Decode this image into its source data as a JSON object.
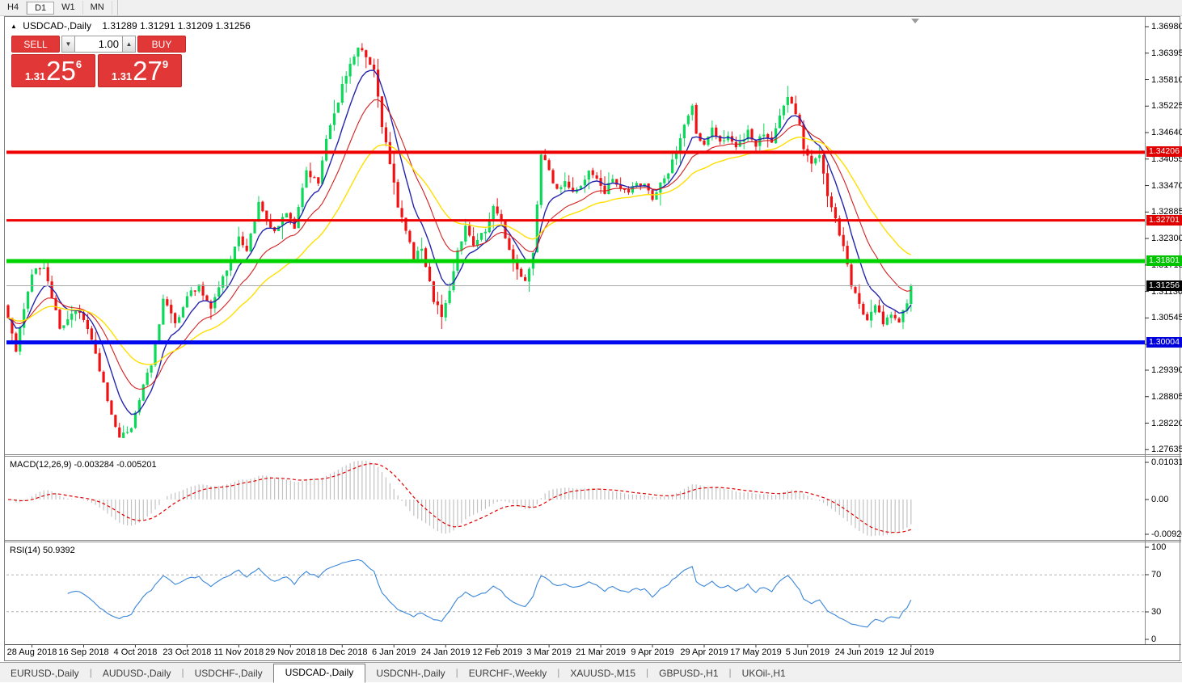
{
  "toolbar": {
    "timeframes": [
      "H4",
      "D1",
      "W1",
      "MN"
    ],
    "active": "D1"
  },
  "title": {
    "symbol_label": "USDCAD-,Daily",
    "ohlc": "1.31289 1.31291 1.31209 1.31256"
  },
  "trade_panel": {
    "sell_label": "SELL",
    "buy_label": "BUY",
    "volume": "1.00",
    "sell_price": {
      "prefix": "1.31",
      "big": "25",
      "sup": "6"
    },
    "buy_price": {
      "prefix": "1.31",
      "big": "27",
      "sup": "9"
    },
    "button_color": "#e23737"
  },
  "chart_data": {
    "type": "candlestick",
    "symbol": "USDCAD-",
    "timeframe": "Daily",
    "ohlc": {
      "open": "1.31289",
      "high": "1.31291",
      "low": "1.31209",
      "close": "1.31256"
    },
    "y_axis": {
      "ticks": [
        "1.36980",
        "1.36395",
        "1.35810",
        "1.35225",
        "1.34640",
        "1.34055",
        "1.33470",
        "1.32885",
        "1.32300",
        "1.31715",
        "1.31130",
        "1.30545",
        "1.29960",
        "1.29390",
        "1.28805",
        "1.28220",
        "1.27635"
      ]
    },
    "x_axis_dates": [
      "28 Aug 2018",
      "16 Sep 2018",
      "4 Oct 2018",
      "23 Oct 2018",
      "11 Nov 2018",
      "29 Nov 2018",
      "18 Dec 2018",
      "6 Jan 2019",
      "24 Jan 2019",
      "12 Feb 2019",
      "3 Mar 2019",
      "21 Mar 2019",
      "9 Apr 2019",
      "29 Apr 2019",
      "17 May 2019",
      "5 Jun 2019",
      "24 Jun 2019",
      "12 Jul 2019"
    ],
    "horizontal_lines": [
      {
        "price": 1.34206,
        "label": "1.34206",
        "color": "#ee0000",
        "width": 4,
        "tag": "#e00000"
      },
      {
        "price": 1.32701,
        "label": "1.32701",
        "color": "#ee0000",
        "width": 3,
        "tag": "#e00000"
      },
      {
        "price": 1.31801,
        "label": "1.31801",
        "color": "#00d400",
        "width": 5,
        "tag": "#00c400"
      },
      {
        "price": 1.31256,
        "label": "1.31256",
        "color": "#a8a8a8",
        "width": 1,
        "tag": "#000000"
      },
      {
        "price": 1.30004,
        "label": "1.30004",
        "color": "#0008ee",
        "width": 5,
        "tag": "#0000dd"
      }
    ],
    "bars_total": 228,
    "candle_up_color": "#0cd95a",
    "candle_down_color": "#f01212",
    "moving_averages": [
      {
        "period": 8,
        "color": "#2424ae"
      },
      {
        "period": 17,
        "color": "#d42020"
      },
      {
        "period": 34,
        "color": "#ffdf00"
      }
    ],
    "price_path_anchors": [
      [
        0,
        1.306
      ],
      [
        2,
        1.2975
      ],
      [
        4,
        1.308
      ],
      [
        6,
        1.3155
      ],
      [
        9,
        1.317
      ],
      [
        13,
        1.303
      ],
      [
        17,
        1.3075
      ],
      [
        20,
        1.303
      ],
      [
        24,
        1.291
      ],
      [
        26,
        1.284
      ],
      [
        28,
        1.2785
      ],
      [
        31,
        1.2815
      ],
      [
        34,
        1.2905
      ],
      [
        36,
        1.295
      ],
      [
        39,
        1.3095
      ],
      [
        42,
        1.304
      ],
      [
        45,
        1.3105
      ],
      [
        48,
        1.3125
      ],
      [
        51,
        1.3075
      ],
      [
        53,
        1.3125
      ],
      [
        56,
        1.318
      ],
      [
        58,
        1.3235
      ],
      [
        60,
        1.3205
      ],
      [
        63,
        1.3305
      ],
      [
        65,
        1.327
      ],
      [
        67,
        1.324
      ],
      [
        70,
        1.329
      ],
      [
        72,
        1.325
      ],
      [
        75,
        1.338
      ],
      [
        78,
        1.3355
      ],
      [
        80,
        1.3455
      ],
      [
        82,
        1.35
      ],
      [
        84,
        1.3565
      ],
      [
        86,
        1.362
      ],
      [
        88,
        1.365
      ],
      [
        90,
        1.363
      ],
      [
        92,
        1.36
      ],
      [
        94,
        1.348
      ],
      [
        96,
        1.3395
      ],
      [
        98,
        1.33
      ],
      [
        100,
        1.3245
      ],
      [
        102,
        1.319
      ],
      [
        104,
        1.3205
      ],
      [
        106,
        1.313
      ],
      [
        107,
        1.3095
      ],
      [
        109,
        1.306
      ],
      [
        111,
        1.312
      ],
      [
        113,
        1.32
      ],
      [
        115,
        1.3255
      ],
      [
        117,
        1.322
      ],
      [
        120,
        1.3245
      ],
      [
        122,
        1.33
      ],
      [
        124,
        1.327
      ],
      [
        126,
        1.32
      ],
      [
        128,
        1.316
      ],
      [
        130,
        1.313
      ],
      [
        132,
        1.32
      ],
      [
        133,
        1.3305
      ],
      [
        134,
        1.342
      ],
      [
        136,
        1.338
      ],
      [
        138,
        1.3335
      ],
      [
        140,
        1.336
      ],
      [
        142,
        1.333
      ],
      [
        144,
        1.334
      ],
      [
        146,
        1.3385
      ],
      [
        148,
        1.336
      ],
      [
        150,
        1.3335
      ],
      [
        152,
        1.3365
      ],
      [
        154,
        1.334
      ],
      [
        156,
        1.333
      ],
      [
        158,
        1.3355
      ],
      [
        160,
        1.3345
      ],
      [
        162,
        1.332
      ],
      [
        164,
        1.3355
      ],
      [
        166,
        1.338
      ],
      [
        168,
        1.342
      ],
      [
        170,
        1.348
      ],
      [
        172,
        1.352
      ],
      [
        173,
        1.3465
      ],
      [
        175,
        1.3435
      ],
      [
        177,
        1.347
      ],
      [
        179,
        1.344
      ],
      [
        181,
        1.346
      ],
      [
        183,
        1.3435
      ],
      [
        185,
        1.3455
      ],
      [
        186,
        1.3465
      ],
      [
        188,
        1.3435
      ],
      [
        190,
        1.3465
      ],
      [
        192,
        1.344
      ],
      [
        194,
        1.35
      ],
      [
        196,
        1.3545
      ],
      [
        198,
        1.351
      ],
      [
        199,
        1.348
      ],
      [
        200,
        1.3425
      ],
      [
        202,
        1.339
      ],
      [
        204,
        1.342
      ],
      [
        206,
        1.333
      ],
      [
        208,
        1.327
      ],
      [
        210,
        1.3215
      ],
      [
        212,
        1.313
      ],
      [
        214,
        1.308
      ],
      [
        216,
        1.3055
      ],
      [
        218,
        1.3085
      ],
      [
        220,
        1.304
      ],
      [
        222,
        1.3065
      ],
      [
        224,
        1.304
      ],
      [
        226,
        1.309
      ],
      [
        227,
        1.31256
      ]
    ],
    "indicators": {
      "macd": {
        "name": "MACD(12,26,9)",
        "values": "-0.003284 -0.005201",
        "scale": [
          "0.010311",
          "0.00",
          "-0.009203"
        ],
        "histogram_color": "#c2c2c2",
        "signal_color": "#e00000"
      },
      "rsi": {
        "name": "RSI(14)",
        "value": "50.9392",
        "scale": [
          "100",
          "70",
          "30",
          "0"
        ],
        "levels": [
          70,
          30
        ],
        "line_color": "#3a86d8",
        "level_color": "#b2b2b2"
      }
    }
  },
  "tabs": {
    "items": [
      "EURUSD-,Daily",
      "AUDUSD-,Daily",
      "USDCHF-,Daily",
      "USDCAD-,Daily",
      "USDCNH-,Daily",
      "EURCHF-,Weekly",
      "XAUUSD-,M15",
      "GBPUSD-,H1",
      "UKOil-,H1"
    ],
    "active_index": 3
  }
}
